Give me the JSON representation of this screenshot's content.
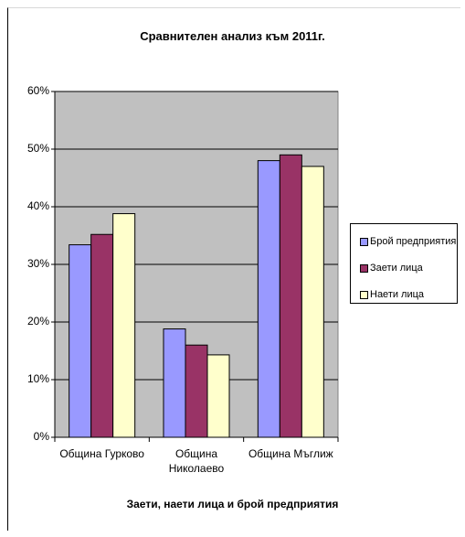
{
  "chart_data": {
    "type": "bar",
    "title": "Сравнителен анализ към 2011г.",
    "xlabel": "Заети, наети лица и брой предприятия",
    "ylabel": "",
    "categories": [
      [
        "Община Гурково"
      ],
      [
        "Община",
        "Николаево"
      ],
      [
        "Община Мъглиж"
      ]
    ],
    "ylim": [
      0,
      0.6
    ],
    "yticks": [
      "0%",
      "10%",
      "20%",
      "30%",
      "40%",
      "50%",
      "60%"
    ],
    "ytick_values": [
      0,
      0.1,
      0.2,
      0.3,
      0.4,
      0.5,
      0.6
    ],
    "grid": true,
    "legend_position": "right",
    "plot_background": "#c0c0c0",
    "series": [
      {
        "name": "Брой предприятия",
        "color": "#9999ff",
        "values": [
          0.334,
          0.188,
          0.48
        ]
      },
      {
        "name": "Заети лица",
        "color": "#993366",
        "values": [
          0.352,
          0.16,
          0.49
        ]
      },
      {
        "name": "Наети лица",
        "color": "#ffffcc",
        "values": [
          0.388,
          0.143,
          0.47
        ]
      }
    ]
  }
}
